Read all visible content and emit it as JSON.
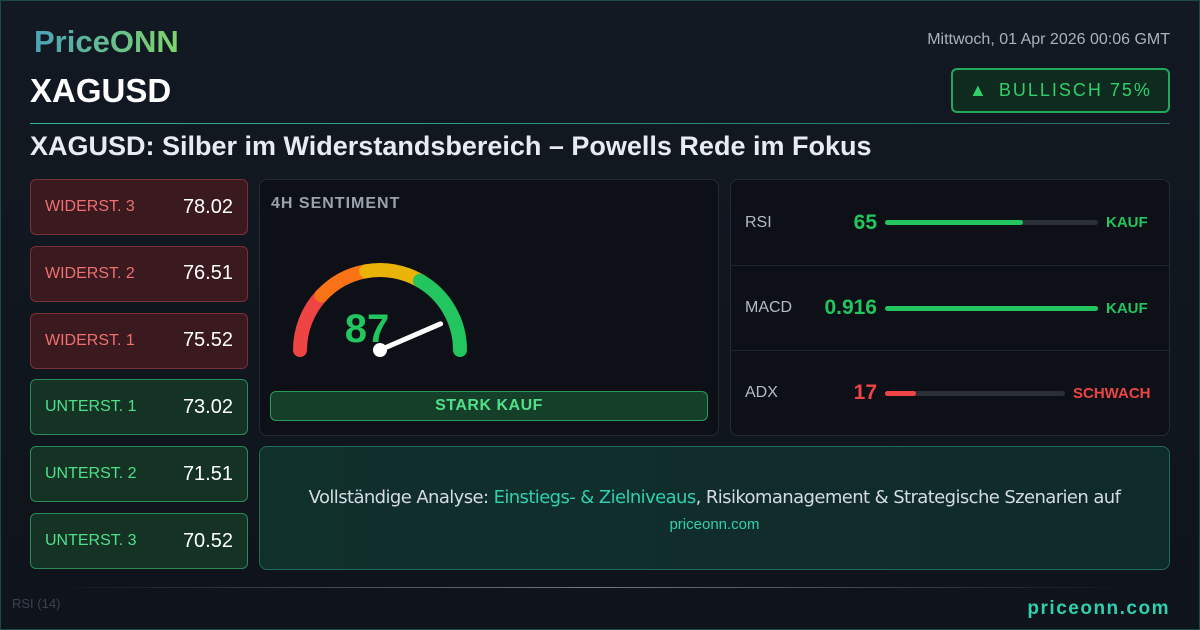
{
  "brand": {
    "logo": "PriceONN",
    "footer_url": "priceonn.com"
  },
  "datetime": "Mittwoch, 01 Apr 2026 00:06 GMT",
  "symbol": "XAGUSD",
  "bias": {
    "icon": "triangle-up-icon",
    "label": "BULLISCH 75%"
  },
  "headline": "XAGUSD: Silber im Widerstandsbereich – Powells Rede im Fokus",
  "levels": [
    {
      "label": "WIDERST. 3",
      "value": "78.02",
      "type": "resistance"
    },
    {
      "label": "WIDERST. 2",
      "value": "76.51",
      "type": "resistance"
    },
    {
      "label": "WIDERST. 1",
      "value": "75.52",
      "type": "resistance"
    },
    {
      "label": "UNTERST. 1",
      "value": "73.02",
      "type": "support"
    },
    {
      "label": "UNTERST. 2",
      "value": "71.51",
      "type": "support"
    },
    {
      "label": "UNTERST. 3",
      "value": "70.52",
      "type": "support"
    }
  ],
  "sentiment": {
    "title": "4H SENTIMENT",
    "value": 87,
    "value_text": "87",
    "signal": "STARK KAUF"
  },
  "indicators": [
    {
      "name": "RSI",
      "value": "65",
      "level": 0.65,
      "signal": "KAUF",
      "color": "#22c55e"
    },
    {
      "name": "MACD",
      "value": "0.916",
      "level": 1.0,
      "signal": "KAUF",
      "color": "#22c55e"
    },
    {
      "name": "ADX",
      "value": "17",
      "level": 0.17,
      "signal": "SCHWACH",
      "color": "#ef4444"
    }
  ],
  "cta": {
    "prefix": "Vollständige Analyse: ",
    "highlight": "Einstiegs- & Zielniveaus",
    "suffix": ", Risikomanagement & Strategische Szenarien auf",
    "url": "priceonn.com"
  },
  "background_chart": {
    "rsi_label": "RSI",
    "rsi_period": "(14)"
  },
  "colors": {
    "accent": "#2fd0b0",
    "bull": "#22c55e",
    "bear": "#ef4444"
  }
}
